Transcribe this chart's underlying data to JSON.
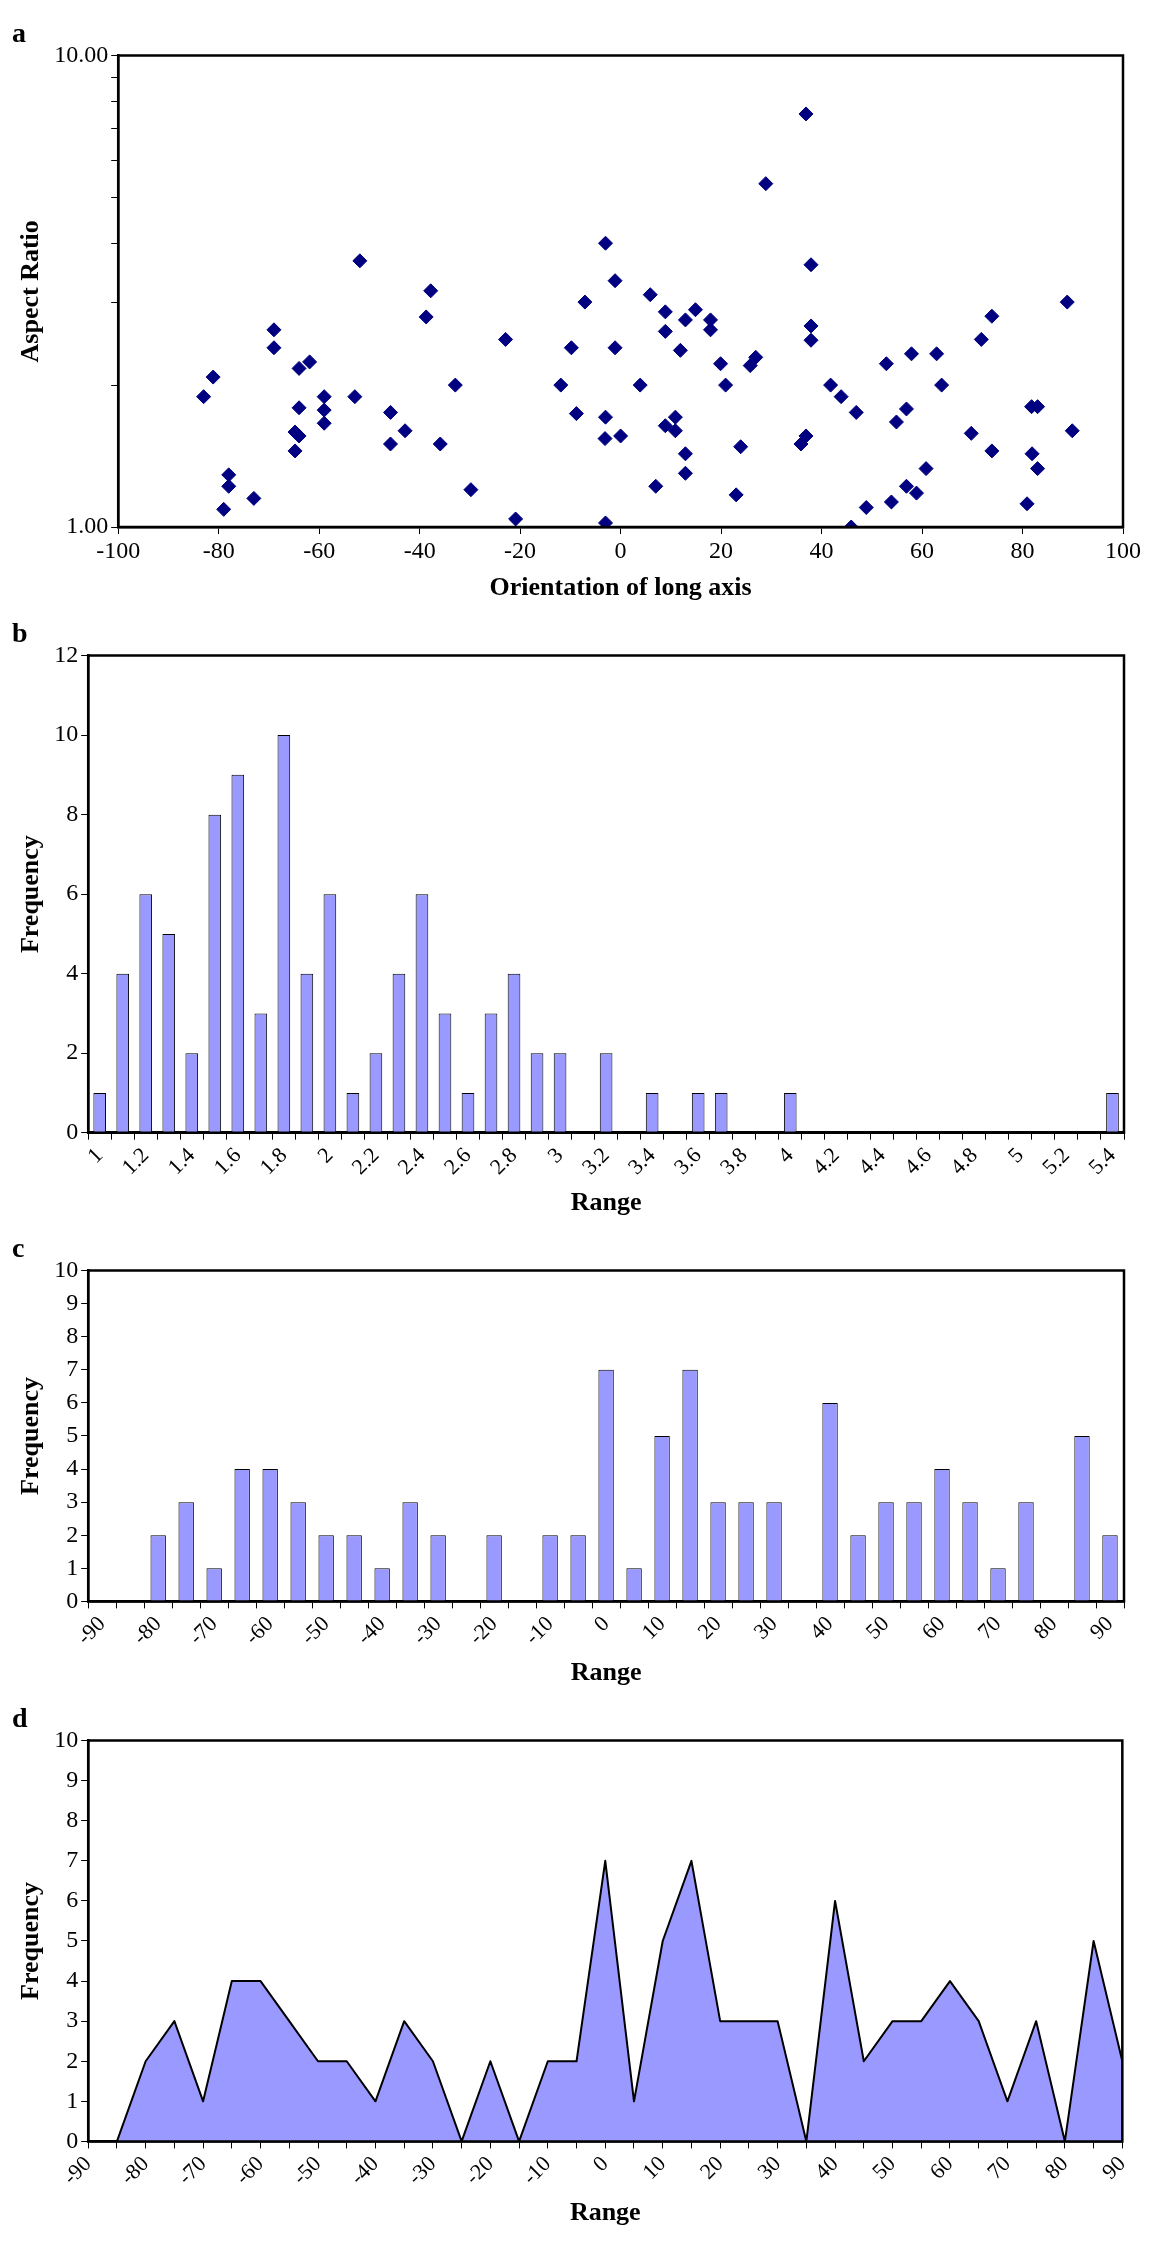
{
  "chart_data": [
    {
      "type": "scatter",
      "title": "a",
      "xlabel": "Orientation of long axis",
      "ylabel": "Aspect Ratio",
      "log": "y",
      "marker": "diamond",
      "color": "#000080",
      "xlim": [
        -100,
        100
      ],
      "xticks": [
        -100,
        -80,
        -60,
        -40,
        -20,
        0,
        20,
        40,
        60,
        80,
        100
      ],
      "ylim": [
        1,
        10
      ],
      "yticks": [
        {
          "value": 1,
          "label": "1.00"
        },
        {
          "value": 2,
          "label": null
        },
        {
          "value": 3,
          "label": null
        },
        {
          "value": 4,
          "label": null
        },
        {
          "value": 5,
          "label": null
        },
        {
          "value": 6,
          "label": null
        },
        {
          "value": 7,
          "label": null
        },
        {
          "value": 8,
          "label": null
        },
        {
          "value": 9,
          "label": null
        },
        {
          "value": 10,
          "label": "10.00"
        }
      ],
      "x": [
        -83.0,
        -81.1,
        -78.0,
        -78.0,
        -79.0,
        -73.0,
        -69.0,
        -69.0,
        -64.0,
        -61.9,
        -64.0,
        -64.8,
        -64.0,
        -64.8,
        -59.0,
        -59.0,
        -59.0,
        -51.9,
        -52.9,
        -45.8,
        -45.8,
        -42.9,
        -37.8,
        -38.7,
        -32.9,
        -35.9,
        -29.8,
        -22.9,
        -20.9,
        -11.9,
        -9.8,
        -8.8,
        -7.1,
        -3.0,
        -1.1,
        -3.0,
        -3.1,
        -3.0,
        -1.1,
        0,
        3.9,
        5.9,
        7.0,
        8.9,
        8.9,
        8.9,
        10.9,
        10.9,
        11.9,
        12.9,
        12.9,
        12.9,
        14.9,
        17.9,
        17.9,
        19.9,
        20.9,
        23.0,
        23.9,
        25.8,
        26.9,
        28.9,
        36.9,
        37.9,
        37.9,
        37.9,
        35.9,
        36.9,
        41.8,
        43.9,
        46.9,
        45.9,
        48.9,
        52.9,
        53.9,
        54.9,
        56.9,
        57.9,
        56.9,
        58.9,
        60.8,
        62.9,
        63.9,
        69.8,
        71.8,
        73.9,
        73.9,
        80.9,
        81.9,
        81.8,
        83.0,
        83.0,
        88.9,
        89.9
      ],
      "values": [
        1.89,
        2.08,
        1.29,
        1.22,
        1.09,
        1.15,
        2.62,
        2.4,
        2.17,
        2.24,
        1.79,
        1.59,
        1.56,
        1.45,
        1.89,
        1.77,
        1.66,
        3.67,
        1.89,
        1.75,
        1.5,
        1.6,
        3.17,
        2.79,
        2.0,
        1.5,
        1.2,
        2.5,
        1.04,
        2.0,
        2.4,
        1.74,
        3.0,
        4.0,
        3.33,
        1.71,
        1.54,
        1.02,
        2.4,
        1.56,
        2.0,
        3.11,
        1.22,
        2.86,
        2.6,
        1.64,
        1.71,
        1.6,
        2.37,
        2.75,
        1.43,
        1.3,
        2.89,
        2.75,
        2.62,
        2.22,
        2.0,
        1.17,
        1.48,
        2.2,
        2.29,
        5.35,
        7.52,
        3.6,
        2.67,
        2.49,
        1.5,
        1.56,
        2.0,
        1.89,
        1.75,
        1.0,
        1.1,
        2.22,
        1.13,
        1.67,
        1.78,
        2.33,
        1.22,
        1.18,
        1.33,
        2.33,
        2.0,
        1.58,
        2.5,
        2.8,
        1.45,
        1.12,
        1.43,
        1.8,
        1.8,
        1.33,
        3.0,
        1.6
      ]
    },
    {
      "type": "bar",
      "title": "b",
      "xlabel": "Range",
      "ylabel": "Frequency",
      "color": "#9999ff",
      "ylim": [
        0,
        12
      ],
      "yticks": [
        0,
        2,
        4,
        6,
        8,
        10,
        12
      ],
      "categories": [
        "1",
        null,
        "1.2",
        null,
        "1.4",
        null,
        "1.6",
        null,
        "1.8",
        null,
        "2",
        null,
        "2.2",
        null,
        "2.4",
        null,
        "2.6",
        null,
        "2.8",
        null,
        "3",
        null,
        "3.2",
        null,
        "3.4",
        null,
        "3.6",
        null,
        "3.8",
        null,
        "4",
        null,
        "4.2",
        null,
        "4.4",
        null,
        "4.6",
        null,
        "4.8",
        null,
        "5",
        null,
        "5.2",
        null,
        "5.4"
      ],
      "values": [
        1,
        4,
        6,
        5,
        2,
        8,
        9,
        3,
        10,
        4,
        6,
        1,
        2,
        4,
        6,
        3,
        1,
        3,
        4,
        2,
        2,
        0,
        2,
        0,
        1,
        0,
        1,
        1,
        0,
        0,
        1,
        0,
        0,
        0,
        0,
        0,
        0,
        0,
        0,
        0,
        0,
        0,
        0,
        0,
        1
      ]
    },
    {
      "type": "bar",
      "title": "c",
      "xlabel": "Range",
      "ylabel": "Frequency",
      "color": "#9999ff",
      "ylim": [
        0,
        10
      ],
      "yticks": [
        0,
        1,
        2,
        3,
        4,
        5,
        6,
        7,
        8,
        9,
        10
      ],
      "categories": [
        "-90",
        null,
        "-80",
        null,
        "-70",
        null,
        "-60",
        null,
        "-50",
        null,
        "-40",
        null,
        "-30",
        null,
        "-20",
        null,
        "-10",
        null,
        "0",
        null,
        "10",
        null,
        "20",
        null,
        "30",
        null,
        "40",
        null,
        "50",
        null,
        "60",
        null,
        "70",
        null,
        "80",
        null,
        "90"
      ],
      "values": [
        0,
        0,
        2,
        3,
        1,
        4,
        4,
        3,
        2,
        2,
        1,
        3,
        2,
        0,
        2,
        0,
        2,
        2,
        7,
        1,
        5,
        7,
        3,
        3,
        3,
        0,
        6,
        2,
        3,
        3,
        4,
        3,
        1,
        3,
        0,
        5,
        2
      ]
    },
    {
      "type": "area",
      "title": "d",
      "xlabel": "Range",
      "ylabel": "Frequency",
      "color": "#9999ff",
      "ylim": [
        0,
        10
      ],
      "yticks": [
        0,
        1,
        2,
        3,
        4,
        5,
        6,
        7,
        8,
        9,
        10
      ],
      "categories": [
        "-90",
        null,
        "-80",
        null,
        "-70",
        null,
        "-60",
        null,
        "-50",
        null,
        "-40",
        null,
        "-30",
        null,
        "-20",
        null,
        "-10",
        null,
        "0",
        null,
        "10",
        null,
        "20",
        null,
        "30",
        null,
        "40",
        null,
        "50",
        null,
        "60",
        null,
        "70",
        null,
        "80",
        null,
        "90"
      ],
      "values": [
        0,
        0,
        2,
        3,
        1,
        4,
        4,
        3,
        2,
        2,
        1,
        3,
        2,
        0,
        2,
        0,
        2,
        2,
        7,
        1,
        5,
        7,
        3,
        3,
        3,
        0,
        6,
        2,
        3,
        3,
        4,
        3,
        1,
        3,
        0,
        5,
        2
      ]
    }
  ]
}
